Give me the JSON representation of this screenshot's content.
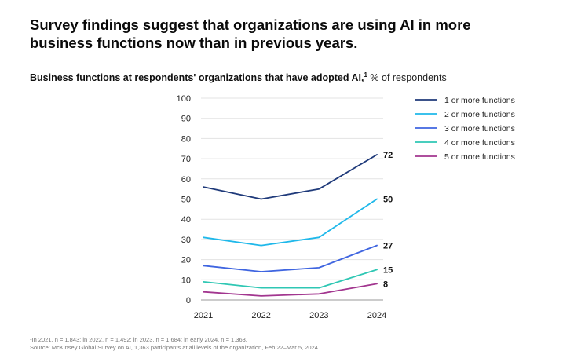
{
  "headline": "Survey findings suggest that organizations are using AI in more business functions now than in previous years.",
  "subtitle": {
    "bold": "Business functions at respondents' organizations that have adopted AI,",
    "sup": "1",
    "light": " % of respondents"
  },
  "footnotes": [
    "¹In 2021, n = 1,843; in 2022, n = 1,492; in 2023, n = 1,684; in early 2024, n = 1,363.",
    "Source: McKinsey Global Survey on AI, 1,363 participants at all levels of the organization, Feb 22–Mar 5, 2024"
  ],
  "chart_data": {
    "type": "line",
    "title": "Business functions at respondents' organizations that have adopted AI,",
    "ylabel": "% of respondents",
    "x": [
      "2021",
      "2022",
      "2023",
      "2024"
    ],
    "ylim": [
      0,
      100
    ],
    "yticks": [
      0,
      10,
      20,
      30,
      40,
      50,
      60,
      70,
      80,
      90,
      100
    ],
    "grid": true,
    "legend": "right",
    "series": [
      {
        "name": "1 or more functions",
        "values": [
          56,
          50,
          55,
          72
        ],
        "color": "#1f3a7a",
        "end_label": "72"
      },
      {
        "name": "2 or more functions",
        "values": [
          31,
          27,
          31,
          50
        ],
        "color": "#1fb8ea",
        "end_label": "50"
      },
      {
        "name": "3 or more functions",
        "values": [
          17,
          14,
          16,
          27
        ],
        "color": "#3f65e0",
        "end_label": "27"
      },
      {
        "name": "4 or more functions",
        "values": [
          9,
          6,
          6,
          15
        ],
        "color": "#2fc7b4",
        "end_label": "15"
      },
      {
        "name": "5 or more functions",
        "values": [
          4,
          2,
          3,
          8
        ],
        "color": "#a2368f",
        "end_label": "8"
      }
    ]
  }
}
